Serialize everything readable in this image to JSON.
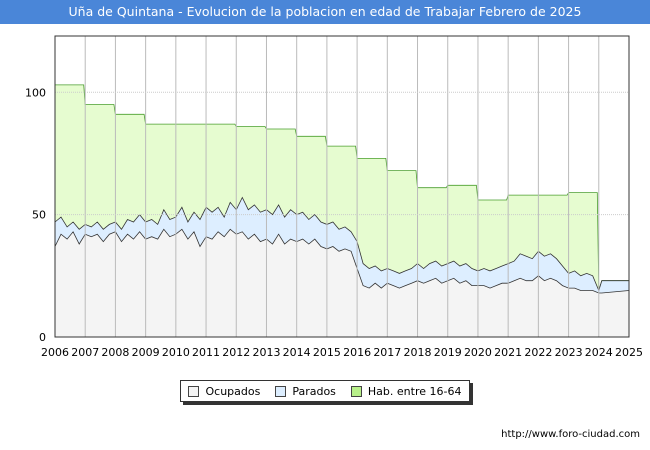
{
  "chart_data": {
    "type": "area",
    "title": "Uña de Quintana - Evolucion de la poblacion en edad de Trabajar Febrero de 2025",
    "xlabel": "",
    "ylabel": "",
    "ylim": [
      0,
      123
    ],
    "x_ticks": [
      "2006",
      "2007",
      "2008",
      "2009",
      "2010",
      "2011",
      "2012",
      "2013",
      "2014",
      "2015",
      "2016",
      "2017",
      "2018",
      "2019",
      "2020",
      "2021",
      "2022",
      "2023",
      "2024",
      "2025"
    ],
    "y_ticks": [
      0,
      50,
      100
    ],
    "grid": true,
    "legend_position": "bottom",
    "series": [
      {
        "name": "Hab. entre 16-64",
        "color_fill": "#e6fcd0",
        "color_line": "#4a9e2e",
        "points": [
          [
            2006.0,
            103
          ],
          [
            2006.95,
            103
          ],
          [
            2007.0,
            95
          ],
          [
            2007.95,
            95
          ],
          [
            2008.0,
            91
          ],
          [
            2008.95,
            91
          ],
          [
            2009.0,
            87
          ],
          [
            2009.95,
            87
          ],
          [
            2010.0,
            87
          ],
          [
            2010.95,
            87
          ],
          [
            2011.0,
            87
          ],
          [
            2011.95,
            87
          ],
          [
            2012.0,
            86
          ],
          [
            2012.95,
            86
          ],
          [
            2013.0,
            85
          ],
          [
            2013.95,
            85
          ],
          [
            2014.0,
            82
          ],
          [
            2014.95,
            82
          ],
          [
            2015.0,
            78
          ],
          [
            2015.95,
            78
          ],
          [
            2016.0,
            73
          ],
          [
            2016.95,
            73
          ],
          [
            2017.0,
            68
          ],
          [
            2017.95,
            68
          ],
          [
            2018.0,
            61
          ],
          [
            2018.95,
            61
          ],
          [
            2019.0,
            62
          ],
          [
            2019.95,
            62
          ],
          [
            2020.0,
            56
          ],
          [
            2020.95,
            56
          ],
          [
            2021.0,
            58
          ],
          [
            2021.95,
            58
          ],
          [
            2022.0,
            58
          ],
          [
            2022.95,
            58
          ],
          [
            2023.0,
            59
          ],
          [
            2023.95,
            59
          ],
          [
            2024.0,
            19
          ],
          [
            2024.1,
            23
          ],
          [
            2025.0,
            23
          ]
        ]
      },
      {
        "name": "Parados",
        "color_fill": "#ddeeff",
        "color_line": "#333333",
        "points": [
          [
            2006.0,
            47
          ],
          [
            2006.2,
            49
          ],
          [
            2006.4,
            45
          ],
          [
            2006.6,
            47
          ],
          [
            2006.8,
            44
          ],
          [
            2007.0,
            46
          ],
          [
            2007.2,
            45
          ],
          [
            2007.4,
            47
          ],
          [
            2007.6,
            44
          ],
          [
            2007.8,
            46
          ],
          [
            2008.0,
            47
          ],
          [
            2008.2,
            44
          ],
          [
            2008.4,
            48
          ],
          [
            2008.6,
            47
          ],
          [
            2008.8,
            50
          ],
          [
            2009.0,
            47
          ],
          [
            2009.2,
            48
          ],
          [
            2009.4,
            46
          ],
          [
            2009.6,
            52
          ],
          [
            2009.8,
            48
          ],
          [
            2010.0,
            49
          ],
          [
            2010.2,
            53
          ],
          [
            2010.4,
            47
          ],
          [
            2010.6,
            51
          ],
          [
            2010.8,
            48
          ],
          [
            2011.0,
            53
          ],
          [
            2011.2,
            51
          ],
          [
            2011.4,
            53
          ],
          [
            2011.6,
            49
          ],
          [
            2011.8,
            55
          ],
          [
            2012.0,
            52
          ],
          [
            2012.2,
            57
          ],
          [
            2012.4,
            52
          ],
          [
            2012.6,
            54
          ],
          [
            2012.8,
            51
          ],
          [
            2013.0,
            52
          ],
          [
            2013.2,
            50
          ],
          [
            2013.4,
            54
          ],
          [
            2013.6,
            49
          ],
          [
            2013.8,
            52
          ],
          [
            2014.0,
            50
          ],
          [
            2014.2,
            51
          ],
          [
            2014.4,
            48
          ],
          [
            2014.6,
            50
          ],
          [
            2014.8,
            47
          ],
          [
            2015.0,
            46
          ],
          [
            2015.2,
            47
          ],
          [
            2015.4,
            44
          ],
          [
            2015.6,
            45
          ],
          [
            2015.8,
            43
          ],
          [
            2016.0,
            39
          ],
          [
            2016.2,
            30
          ],
          [
            2016.4,
            28
          ],
          [
            2016.6,
            29
          ],
          [
            2016.8,
            27
          ],
          [
            2017.0,
            28
          ],
          [
            2017.2,
            27
          ],
          [
            2017.4,
            26
          ],
          [
            2017.6,
            27
          ],
          [
            2017.8,
            28
          ],
          [
            2018.0,
            30
          ],
          [
            2018.2,
            28
          ],
          [
            2018.4,
            30
          ],
          [
            2018.6,
            31
          ],
          [
            2018.8,
            29
          ],
          [
            2019.0,
            30
          ],
          [
            2019.2,
            31
          ],
          [
            2019.4,
            29
          ],
          [
            2019.6,
            30
          ],
          [
            2019.8,
            28
          ],
          [
            2020.0,
            27
          ],
          [
            2020.2,
            28
          ],
          [
            2020.4,
            27
          ],
          [
            2020.6,
            28
          ],
          [
            2020.8,
            29
          ],
          [
            2021.0,
            30
          ],
          [
            2021.2,
            31
          ],
          [
            2021.4,
            34
          ],
          [
            2021.6,
            33
          ],
          [
            2021.8,
            32
          ],
          [
            2022.0,
            35
          ],
          [
            2022.2,
            33
          ],
          [
            2022.4,
            34
          ],
          [
            2022.6,
            32
          ],
          [
            2022.8,
            29
          ],
          [
            2023.0,
            26
          ],
          [
            2023.2,
            27
          ],
          [
            2023.4,
            25
          ],
          [
            2023.6,
            26
          ],
          [
            2023.8,
            25
          ],
          [
            2024.0,
            19
          ],
          [
            2024.1,
            23
          ],
          [
            2025.0,
            23
          ]
        ]
      },
      {
        "name": "Ocupados",
        "color_fill": "#f4f4f4",
        "color_line": "#333333",
        "points": [
          [
            2006.0,
            37
          ],
          [
            2006.2,
            42
          ],
          [
            2006.4,
            40
          ],
          [
            2006.6,
            43
          ],
          [
            2006.8,
            38
          ],
          [
            2007.0,
            42
          ],
          [
            2007.2,
            41
          ],
          [
            2007.4,
            42
          ],
          [
            2007.6,
            39
          ],
          [
            2007.8,
            42
          ],
          [
            2008.0,
            43
          ],
          [
            2008.2,
            39
          ],
          [
            2008.4,
            42
          ],
          [
            2008.6,
            40
          ],
          [
            2008.8,
            43
          ],
          [
            2009.0,
            40
          ],
          [
            2009.2,
            41
          ],
          [
            2009.4,
            40
          ],
          [
            2009.6,
            44
          ],
          [
            2009.8,
            41
          ],
          [
            2010.0,
            42
          ],
          [
            2010.2,
            44
          ],
          [
            2010.4,
            40
          ],
          [
            2010.6,
            43
          ],
          [
            2010.8,
            37
          ],
          [
            2011.0,
            41
          ],
          [
            2011.2,
            40
          ],
          [
            2011.4,
            43
          ],
          [
            2011.6,
            41
          ],
          [
            2011.8,
            44
          ],
          [
            2012.0,
            42
          ],
          [
            2012.2,
            43
          ],
          [
            2012.4,
            40
          ],
          [
            2012.6,
            42
          ],
          [
            2012.8,
            39
          ],
          [
            2013.0,
            40
          ],
          [
            2013.2,
            38
          ],
          [
            2013.4,
            42
          ],
          [
            2013.6,
            38
          ],
          [
            2013.8,
            40
          ],
          [
            2014.0,
            39
          ],
          [
            2014.2,
            40
          ],
          [
            2014.4,
            38
          ],
          [
            2014.6,
            40
          ],
          [
            2014.8,
            37
          ],
          [
            2015.0,
            36
          ],
          [
            2015.2,
            37
          ],
          [
            2015.4,
            35
          ],
          [
            2015.6,
            36
          ],
          [
            2015.8,
            35
          ],
          [
            2016.0,
            28
          ],
          [
            2016.2,
            21
          ],
          [
            2016.4,
            20
          ],
          [
            2016.6,
            22
          ],
          [
            2016.8,
            20
          ],
          [
            2017.0,
            22
          ],
          [
            2017.2,
            21
          ],
          [
            2017.4,
            20
          ],
          [
            2017.6,
            21
          ],
          [
            2017.8,
            22
          ],
          [
            2018.0,
            23
          ],
          [
            2018.2,
            22
          ],
          [
            2018.4,
            23
          ],
          [
            2018.6,
            24
          ],
          [
            2018.8,
            22
          ],
          [
            2019.0,
            23
          ],
          [
            2019.2,
            24
          ],
          [
            2019.4,
            22
          ],
          [
            2019.6,
            23
          ],
          [
            2019.8,
            21
          ],
          [
            2020.0,
            21
          ],
          [
            2020.2,
            21
          ],
          [
            2020.4,
            20
          ],
          [
            2020.6,
            21
          ],
          [
            2020.8,
            22
          ],
          [
            2021.0,
            22
          ],
          [
            2021.2,
            23
          ],
          [
            2021.4,
            24
          ],
          [
            2021.6,
            23
          ],
          [
            2021.8,
            23
          ],
          [
            2022.0,
            25
          ],
          [
            2022.2,
            23
          ],
          [
            2022.4,
            24
          ],
          [
            2022.6,
            23
          ],
          [
            2022.8,
            21
          ],
          [
            2023.0,
            20
          ],
          [
            2023.2,
            20
          ],
          [
            2023.4,
            19
          ],
          [
            2023.6,
            19
          ],
          [
            2023.8,
            19
          ],
          [
            2024.0,
            18
          ],
          [
            2024.1,
            18
          ],
          [
            2025.0,
            19
          ]
        ]
      }
    ]
  },
  "legend": {
    "items": [
      {
        "label": "Ocupados",
        "color": "#f4f4f4"
      },
      {
        "label": "Parados",
        "color": "#ddeeff"
      },
      {
        "label": "Hab. entre 16-64",
        "color": "#b8f08a"
      }
    ]
  },
  "footer": {
    "source": "http://www.foro-ciudad.com"
  }
}
